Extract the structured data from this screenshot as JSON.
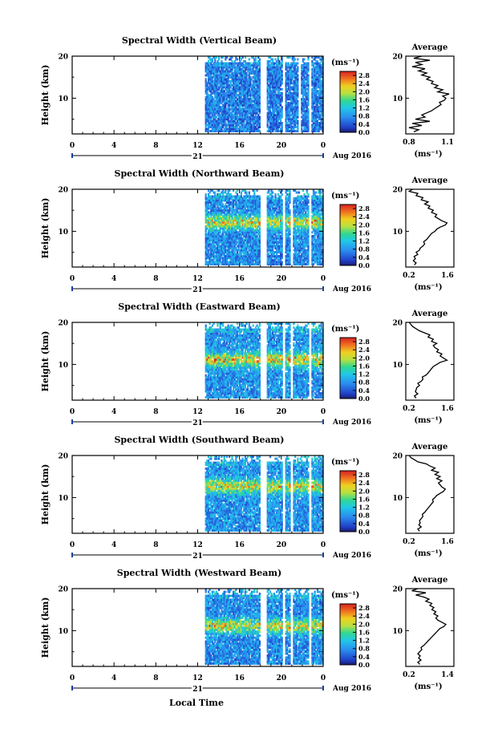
{
  "figure": {
    "xlabel": "Local Time",
    "date_label": "Aug 2016",
    "day_label": "21",
    "colorbar_unit": "(ms⁻¹)",
    "avg_title": "Average",
    "avg_xlabel": "(ms⁻¹)",
    "ylabel": "Height (km)"
  },
  "chart_data": [
    {
      "type": "heatmap",
      "title": "Spectral Width (Vertical Beam)",
      "xlabel": "Local Time",
      "ylabel": "Height (km)",
      "x_ticks": [
        "0",
        "4",
        "8",
        "12",
        "16",
        "20",
        "0"
      ],
      "xlim": [
        0,
        24
      ],
      "y_ticks": [
        "10",
        "20"
      ],
      "ylim": [
        1.5,
        20
      ],
      "data_xrange": [
        12.7,
        24
      ],
      "gaps": [
        [
          18.0,
          18.6
        ],
        [
          20.1,
          20.4
        ],
        [
          21.6,
          21.9
        ],
        [
          22.6,
          22.9
        ]
      ],
      "colorbar": {
        "label": "(ms⁻¹)",
        "ticks": [
          "0.0",
          "0.4",
          "0.8",
          "1.2",
          "1.6",
          "2.0",
          "2.4",
          "2.8"
        ],
        "range": [
          0,
          3.0
        ]
      },
      "field": {
        "base": 0.65,
        "hot_band_km": null,
        "hot_amp": 0.0,
        "seed": 11
      },
      "average": {
        "xlim": [
          0.8,
          1.1
        ],
        "x_ticks": [
          "0.8",
          "1.1"
        ],
        "y_ticks": [
          "10",
          "20"
        ],
        "points": [
          [
            0.85,
            2
          ],
          [
            0.88,
            2.5
          ],
          [
            0.82,
            3
          ],
          [
            0.9,
            3.5
          ],
          [
            0.84,
            4
          ],
          [
            0.95,
            4.5
          ],
          [
            0.86,
            5
          ],
          [
            0.92,
            5.5
          ],
          [
            0.9,
            6
          ],
          [
            0.93,
            6.5
          ],
          [
            0.96,
            7
          ],
          [
            0.98,
            7.5
          ],
          [
            1.0,
            8
          ],
          [
            1.02,
            8.5
          ],
          [
            1.01,
            9
          ],
          [
            1.04,
            9.5
          ],
          [
            1.05,
            10
          ],
          [
            1.03,
            10.5
          ],
          [
            1.07,
            11
          ],
          [
            1.0,
            11.5
          ],
          [
            1.03,
            12
          ],
          [
            0.98,
            12.5
          ],
          [
            1.0,
            13
          ],
          [
            0.96,
            13.5
          ],
          [
            0.97,
            14
          ],
          [
            0.93,
            14.5
          ],
          [
            0.95,
            15
          ],
          [
            0.9,
            15.5
          ],
          [
            0.93,
            16
          ],
          [
            0.88,
            16.5
          ],
          [
            0.92,
            17
          ],
          [
            0.84,
            17.5
          ],
          [
            0.9,
            18
          ],
          [
            0.86,
            18.5
          ],
          [
            0.95,
            19
          ],
          [
            0.85,
            19.5
          ],
          [
            0.9,
            20
          ]
        ]
      }
    },
    {
      "type": "heatmap",
      "title": "Spectral Width (Northward Beam)",
      "xlabel": "Local Time",
      "ylabel": "Height (km)",
      "x_ticks": [
        "0",
        "4",
        "8",
        "12",
        "16",
        "20",
        "0"
      ],
      "xlim": [
        0,
        24
      ],
      "y_ticks": [
        "10",
        "20"
      ],
      "ylim": [
        1.5,
        20
      ],
      "data_xrange": [
        12.7,
        24
      ],
      "gaps": [
        [
          18.0,
          18.6
        ],
        [
          20.1,
          20.4
        ],
        [
          20.9,
          21.1
        ],
        [
          22.6,
          22.9
        ]
      ],
      "colorbar": {
        "label": "(ms⁻¹)",
        "ticks": [
          "0.0",
          "0.4",
          "0.8",
          "1.2",
          "1.6",
          "2.0",
          "2.4",
          "2.8"
        ],
        "range": [
          0,
          3.0
        ]
      },
      "field": {
        "base": 0.75,
        "hot_band_km": 12,
        "hot_amp": 1.6,
        "seed": 23
      },
      "average": {
        "xlim": [
          0.2,
          1.6
        ],
        "x_ticks": [
          "0.2",
          "1.6"
        ],
        "y_ticks": [
          "10",
          "20"
        ],
        "points": [
          [
            0.45,
            2
          ],
          [
            0.5,
            2.5
          ],
          [
            0.42,
            3
          ],
          [
            0.48,
            3.5
          ],
          [
            0.44,
            4
          ],
          [
            0.55,
            4.5
          ],
          [
            0.5,
            5
          ],
          [
            0.6,
            5.5
          ],
          [
            0.62,
            6
          ],
          [
            0.7,
            6.5
          ],
          [
            0.75,
            7
          ],
          [
            0.72,
            7.5
          ],
          [
            0.8,
            8
          ],
          [
            0.85,
            8.5
          ],
          [
            0.9,
            9
          ],
          [
            0.95,
            9.5
          ],
          [
            1.05,
            10
          ],
          [
            1.1,
            10.5
          ],
          [
            1.2,
            11
          ],
          [
            1.35,
            11.5
          ],
          [
            1.4,
            12
          ],
          [
            1.25,
            12.5
          ],
          [
            1.15,
            13
          ],
          [
            1.05,
            13.5
          ],
          [
            1.1,
            14
          ],
          [
            0.95,
            14.5
          ],
          [
            1.0,
            15
          ],
          [
            0.85,
            15.5
          ],
          [
            0.9,
            16
          ],
          [
            0.75,
            16.5
          ],
          [
            0.85,
            17
          ],
          [
            0.65,
            17.5
          ],
          [
            0.7,
            18
          ],
          [
            0.5,
            18.5
          ],
          [
            0.55,
            19
          ],
          [
            0.3,
            19.5
          ],
          [
            0.4,
            20
          ]
        ]
      }
    },
    {
      "type": "heatmap",
      "title": "Spectral Width (Eastward Beam)",
      "xlabel": "Local Time",
      "ylabel": "Height (km)",
      "x_ticks": [
        "0",
        "4",
        "8",
        "12",
        "16",
        "20",
        "0"
      ],
      "xlim": [
        0,
        24
      ],
      "y_ticks": [
        "10",
        "20"
      ],
      "ylim": [
        1.5,
        20
      ],
      "data_xrange": [
        12.7,
        24
      ],
      "gaps": [
        [
          18.0,
          18.6
        ],
        [
          20.1,
          20.4
        ],
        [
          20.9,
          21.1
        ],
        [
          22.6,
          22.9
        ]
      ],
      "colorbar": {
        "label": "(ms⁻¹)",
        "ticks": [
          "0.0",
          "0.4",
          "0.8",
          "1.2",
          "1.6",
          "2.0",
          "2.4",
          "2.8"
        ],
        "range": [
          0,
          3.0
        ]
      },
      "field": {
        "base": 0.8,
        "hot_band_km": 11,
        "hot_amp": 1.7,
        "seed": 37
      },
      "average": {
        "xlim": [
          0.2,
          1.6
        ],
        "x_ticks": [
          "0.2",
          "1.6"
        ],
        "y_ticks": [
          "10",
          "20"
        ],
        "points": [
          [
            0.5,
            2
          ],
          [
            0.45,
            2.5
          ],
          [
            0.55,
            3
          ],
          [
            0.48,
            3.5
          ],
          [
            0.5,
            4
          ],
          [
            0.52,
            4.5
          ],
          [
            0.6,
            5
          ],
          [
            0.55,
            5.5
          ],
          [
            0.65,
            6
          ],
          [
            0.7,
            6.5
          ],
          [
            0.68,
            7
          ],
          [
            0.8,
            7.5
          ],
          [
            0.85,
            8
          ],
          [
            0.9,
            8.5
          ],
          [
            0.95,
            9
          ],
          [
            1.0,
            9.5
          ],
          [
            1.1,
            10
          ],
          [
            1.2,
            10.5
          ],
          [
            1.4,
            11
          ],
          [
            1.3,
            11.5
          ],
          [
            1.2,
            12
          ],
          [
            1.25,
            12.5
          ],
          [
            1.1,
            13
          ],
          [
            1.15,
            13.5
          ],
          [
            1.05,
            14
          ],
          [
            1.0,
            14.5
          ],
          [
            1.1,
            15
          ],
          [
            0.95,
            15.5
          ],
          [
            1.0,
            16
          ],
          [
            0.85,
            16.5
          ],
          [
            0.9,
            17
          ],
          [
            0.75,
            17.5
          ],
          [
            0.6,
            18
          ],
          [
            0.5,
            18.5
          ],
          [
            0.4,
            19
          ],
          [
            0.35,
            19.5
          ],
          [
            0.3,
            20
          ]
        ]
      }
    },
    {
      "type": "heatmap",
      "title": "Spectral Width (Southward Beam)",
      "xlabel": "Local Time",
      "ylabel": "Height (km)",
      "x_ticks": [
        "0",
        "4",
        "8",
        "12",
        "16",
        "20",
        "0"
      ],
      "xlim": [
        0,
        24
      ],
      "y_ticks": [
        "10",
        "20"
      ],
      "ylim": [
        1.5,
        20
      ],
      "data_xrange": [
        12.7,
        24
      ],
      "gaps": [
        [
          18.0,
          18.6
        ],
        [
          20.1,
          20.4
        ],
        [
          20.9,
          21.1
        ],
        [
          22.6,
          22.9
        ]
      ],
      "colorbar": {
        "label": "(ms⁻¹)",
        "ticks": [
          "0.0",
          "0.4",
          "0.8",
          "1.2",
          "1.6",
          "2.0",
          "2.4",
          "2.8"
        ],
        "range": [
          0,
          3.0
        ]
      },
      "field": {
        "base": 0.8,
        "hot_band_km": 12.5,
        "hot_amp": 1.5,
        "seed": 41
      },
      "average": {
        "xlim": [
          0.2,
          1.6
        ],
        "x_ticks": [
          "0.2",
          "1.6"
        ],
        "y_ticks": [
          "10",
          "20"
        ],
        "points": [
          [
            0.6,
            2
          ],
          [
            0.55,
            2.5
          ],
          [
            0.65,
            3
          ],
          [
            0.58,
            3.5
          ],
          [
            0.62,
            4
          ],
          [
            0.6,
            4.5
          ],
          [
            0.65,
            5
          ],
          [
            0.7,
            5.5
          ],
          [
            0.68,
            6
          ],
          [
            0.75,
            6.5
          ],
          [
            0.8,
            7
          ],
          [
            0.85,
            7.5
          ],
          [
            0.9,
            8
          ],
          [
            0.95,
            8.5
          ],
          [
            1.0,
            9
          ],
          [
            0.98,
            9.5
          ],
          [
            1.05,
            10
          ],
          [
            1.1,
            10.5
          ],
          [
            1.2,
            11
          ],
          [
            1.3,
            11.5
          ],
          [
            1.35,
            12
          ],
          [
            1.25,
            12.5
          ],
          [
            1.2,
            13
          ],
          [
            1.15,
            13.5
          ],
          [
            1.25,
            14
          ],
          [
            1.1,
            14.5
          ],
          [
            1.2,
            15
          ],
          [
            1.05,
            15.5
          ],
          [
            1.15,
            16
          ],
          [
            0.95,
            16.5
          ],
          [
            1.05,
            17
          ],
          [
            0.9,
            17.5
          ],
          [
            0.8,
            18
          ],
          [
            0.55,
            18.5
          ],
          [
            0.45,
            19
          ],
          [
            0.35,
            19.5
          ],
          [
            0.3,
            20
          ]
        ]
      }
    },
    {
      "type": "heatmap",
      "title": "Spectral Width (Westward Beam)",
      "xlabel": "Local Time",
      "ylabel": "Height (km)",
      "x_ticks": [
        "0",
        "4",
        "8",
        "12",
        "16",
        "20",
        "0"
      ],
      "xlim": [
        0,
        24
      ],
      "y_ticks": [
        "10",
        "20"
      ],
      "ylim": [
        1.5,
        20
      ],
      "data_xrange": [
        12.7,
        24
      ],
      "gaps": [
        [
          18.0,
          18.6
        ],
        [
          20.1,
          20.4
        ],
        [
          20.9,
          21.1
        ],
        [
          22.6,
          22.9
        ]
      ],
      "colorbar": {
        "label": "(ms⁻¹)",
        "ticks": [
          "0.0",
          "0.4",
          "0.8",
          "1.2",
          "1.6",
          "2.0",
          "2.4",
          "2.8"
        ],
        "range": [
          0,
          3.0
        ]
      },
      "field": {
        "base": 0.75,
        "hot_band_km": 11,
        "hot_amp": 1.6,
        "seed": 53
      },
      "average": {
        "xlim": [
          0.2,
          1.4
        ],
        "x_ticks": [
          "0.2",
          "1.4"
        ],
        "y_ticks": [
          "10",
          "20"
        ],
        "points": [
          [
            0.55,
            2
          ],
          [
            0.5,
            2.5
          ],
          [
            0.58,
            3
          ],
          [
            0.52,
            3.5
          ],
          [
            0.56,
            4
          ],
          [
            0.5,
            4.5
          ],
          [
            0.55,
            5
          ],
          [
            0.6,
            5.5
          ],
          [
            0.58,
            6
          ],
          [
            0.65,
            6.5
          ],
          [
            0.7,
            7
          ],
          [
            0.75,
            7.5
          ],
          [
            0.8,
            8
          ],
          [
            0.85,
            8.5
          ],
          [
            0.9,
            9
          ],
          [
            0.95,
            9.5
          ],
          [
            1.0,
            10
          ],
          [
            1.05,
            10.5
          ],
          [
            1.15,
            11
          ],
          [
            1.2,
            11.5
          ],
          [
            1.1,
            12
          ],
          [
            1.0,
            12.5
          ],
          [
            0.95,
            13
          ],
          [
            1.0,
            13.5
          ],
          [
            0.9,
            14
          ],
          [
            0.95,
            14.5
          ],
          [
            0.85,
            15
          ],
          [
            0.9,
            15.5
          ],
          [
            0.8,
            16
          ],
          [
            0.85,
            16.5
          ],
          [
            0.7,
            17
          ],
          [
            0.78,
            17.5
          ],
          [
            0.65,
            18
          ],
          [
            0.45,
            18.5
          ],
          [
            0.7,
            19
          ],
          [
            0.35,
            19.5
          ],
          [
            0.5,
            20
          ]
        ]
      }
    }
  ]
}
